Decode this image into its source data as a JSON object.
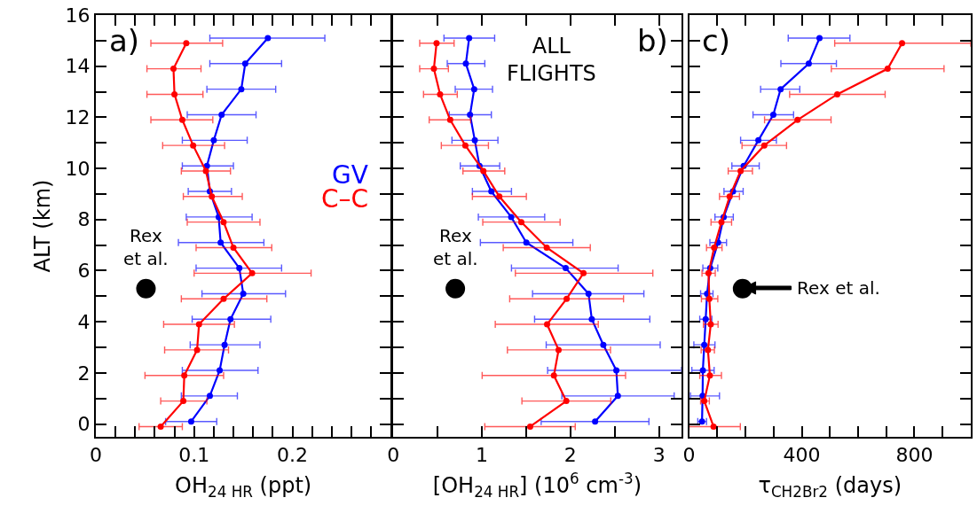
{
  "chart_data": [
    {
      "type": "line",
      "xlabel": "OH$_{24 HR}$ (ppt)",
      "ylabel": "ALT (km)",
      "xlim": [
        0,
        0.3
      ],
      "ylim": [
        -0.5,
        16
      ],
      "xticks": [
        0,
        {
          "value": 0.02,
          "label": null
        },
        {
          "value": 0.04,
          "label": null
        },
        {
          "value": 0.06,
          "label": null
        },
        {
          "value": 0.08,
          "label": null
        },
        0.1,
        {
          "value": 0.12,
          "label": null
        },
        {
          "value": 0.14,
          "label": null
        },
        {
          "value": 0.16,
          "label": null
        },
        {
          "value": 0.18,
          "label": null
        },
        0.2,
        {
          "value": 0.22,
          "label": null
        },
        {
          "value": 0.24,
          "label": null
        },
        {
          "value": 0.26,
          "label": null
        },
        {
          "value": 0.28,
          "label": null
        }
      ],
      "yticks": [
        0,
        {
          "value": 1,
          "label": null
        },
        2,
        {
          "value": 3,
          "label": null
        },
        4,
        {
          "value": 5,
          "label": null
        },
        6,
        {
          "value": 7,
          "label": null
        },
        8,
        {
          "value": 9,
          "label": null
        },
        10,
        {
          "value": 11,
          "label": null
        },
        12,
        {
          "value": 13,
          "label": null
        },
        14,
        {
          "value": 15,
          "label": null
        },
        16
      ],
      "marker": "circle",
      "legend": "right",
      "annotations": [
        "a)",
        {
          "text": "Rex\net al.",
          "x": 0.051,
          "y": 5.3
        }
      ],
      "series": [
        {
          "name": "GV",
          "color": "#0000ff",
          "x": [
            0.175,
            0.152,
            0.148,
            0.128,
            0.12,
            0.113,
            0.116,
            0.125,
            0.127,
            0.146,
            0.15,
            0.137,
            0.131,
            0.126,
            0.116,
            0.097
          ],
          "values": [
            15.1,
            14.1,
            13.1,
            12.1,
            11.1,
            10.1,
            9.1,
            8.1,
            7.1,
            6.1,
            5.1,
            4.1,
            3.1,
            2.1,
            1.1,
            0.1
          ],
          "xerrors": [
            [
              0.116,
              0.233
            ],
            [
              0.116,
              0.189
            ],
            [
              0.113,
              0.183
            ],
            [
              0.093,
              0.163
            ],
            [
              0.088,
              0.154
            ],
            [
              0.088,
              0.14
            ],
            [
              0.094,
              0.138
            ],
            [
              0.092,
              0.159
            ],
            [
              0.084,
              0.171
            ],
            [
              0.102,
              0.189
            ],
            [
              0.108,
              0.193
            ],
            [
              0.098,
              0.178
            ],
            [
              0.096,
              0.167
            ],
            [
              0.088,
              0.165
            ],
            [
              0.087,
              0.144
            ],
            [
              0.071,
              0.123
            ]
          ]
        },
        {
          "name": "C–C",
          "color": "#ff0000",
          "x": [
            0.092,
            0.079,
            0.08,
            0.088,
            0.099,
            0.112,
            0.118,
            0.13,
            0.14,
            0.159,
            0.13,
            0.105,
            0.103,
            0.09,
            0.089,
            0.066
          ],
          "values": [
            14.9,
            13.9,
            12.9,
            11.9,
            10.9,
            9.9,
            8.9,
            7.9,
            6.9,
            5.9,
            4.9,
            3.9,
            2.9,
            1.9,
            0.9,
            -0.1
          ],
          "xerrors": [
            [
              0.056,
              0.129
            ],
            [
              0.052,
              0.107
            ],
            [
              0.052,
              0.109
            ],
            [
              0.056,
              0.119
            ],
            [
              0.068,
              0.131
            ],
            [
              0.087,
              0.137
            ],
            [
              0.089,
              0.149
            ],
            [
              0.093,
              0.167
            ],
            [
              0.102,
              0.179
            ],
            [
              0.1,
              0.219
            ],
            [
              0.087,
              0.174
            ],
            [
              0.069,
              0.141
            ],
            [
              0.07,
              0.135
            ],
            [
              0.05,
              0.13
            ],
            [
              0.066,
              0.113
            ],
            [
              0.044,
              0.088
            ]
          ]
        },
        {
          "type": "scatter",
          "color": "#000000",
          "x": [
            0.051
          ],
          "values": [
            5.3
          ]
        }
      ]
    },
    {
      "type": "line",
      "xlabel": "[OH$_{24 HR}$] (10$^{6}$ cm$^{-3}$)",
      "xlim": [
        0,
        3.25
      ],
      "ylim": [
        -0.5,
        16
      ],
      "tick_labels": "x",
      "xticks": [
        0,
        {
          "value": 0.5,
          "label": null
        },
        1,
        {
          "value": 1.5,
          "label": null
        },
        2,
        {
          "value": 2.5,
          "label": null
        },
        3
      ],
      "yticks": [
        0,
        {
          "value": 1,
          "label": null
        },
        2,
        {
          "value": 3,
          "label": null
        },
        4,
        {
          "value": 5,
          "label": null
        },
        6,
        {
          "value": 7,
          "label": null
        },
        8,
        {
          "value": 9,
          "label": null
        },
        10,
        {
          "value": 11,
          "label": null
        },
        12,
        {
          "value": 13,
          "label": null
        },
        14,
        {
          "value": 15,
          "label": null
        },
        16
      ],
      "marker": "circle",
      "annotations": [
        "b)",
        "ALL\nFLIGHTS",
        {
          "text": "Rex\net al.",
          "x": 0.7,
          "y": 5.3
        }
      ],
      "series": [
        {
          "color": "#0000ff",
          "x": [
            0.856,
            0.819,
            0.913,
            0.866,
            0.92,
            0.973,
            1.107,
            1.331,
            1.502,
            1.946,
            2.204,
            2.241,
            2.371,
            2.518,
            2.535,
            2.278
          ],
          "values": [
            15.1,
            14.1,
            13.1,
            12.1,
            11.1,
            10.1,
            9.1,
            8.1,
            7.1,
            6.1,
            5.1,
            4.1,
            3.1,
            2.1,
            1.1,
            0.1
          ],
          "xerrors": [
            [
              0.572,
              1.144
            ],
            [
              0.609,
              1.033
            ],
            [
              0.699,
              1.12
            ],
            [
              0.632,
              1.107
            ],
            [
              0.662,
              1.181
            ],
            [
              0.756,
              1.201
            ],
            [
              0.893,
              1.334
            ],
            [
              0.96,
              1.709
            ],
            [
              0.983,
              2.027
            ],
            [
              1.334,
              2.538
            ],
            [
              1.572,
              2.829
            ],
            [
              1.595,
              2.896
            ],
            [
              1.726,
              3.013
            ],
            [
              1.742,
              3.25
            ],
            [
              1.903,
              3.171
            ],
            [
              1.669,
              2.886
            ]
          ]
        },
        {
          "color": "#ff0000",
          "x": [
            0.488,
            0.458,
            0.528,
            0.642,
            0.813,
            1.017,
            1.197,
            1.445,
            1.732,
            2.147,
            1.957,
            1.736,
            1.866,
            1.813,
            1.953,
            1.545
          ],
          "values": [
            14.9,
            13.9,
            12.9,
            11.9,
            10.9,
            9.9,
            8.9,
            7.9,
            6.9,
            5.9,
            4.9,
            3.9,
            2.9,
            1.9,
            0.9,
            -0.1
          ],
          "xerrors": [
            [
              0.298,
              0.686
            ],
            [
              0.298,
              0.622
            ],
            [
              0.341,
              0.722
            ],
            [
              0.405,
              0.873
            ],
            [
              0.542,
              1.074
            ],
            [
              0.786,
              1.258
            ],
            [
              0.893,
              1.502
            ],
            [
              1.01,
              1.883
            ],
            [
              1.241,
              2.224
            ],
            [
              1.378,
              2.93
            ],
            [
              1.314,
              2.599
            ],
            [
              1.151,
              2.314
            ],
            [
              1.288,
              2.452
            ],
            [
              1.003,
              2.622
            ],
            [
              1.452,
              2.455
            ],
            [
              1.033,
              2.054
            ]
          ]
        },
        {
          "type": "scatter",
          "color": "#000000",
          "x": [
            0.7
          ],
          "values": [
            5.3
          ]
        }
      ]
    },
    {
      "type": "line",
      "xlabel": "τ$_{CH2Br2}$ (days)",
      "xlim": [
        0,
        1000
      ],
      "ylim": [
        -0.5,
        16
      ],
      "tick_labels": "x",
      "xticks": [
        0,
        {
          "value": 100,
          "label": null
        },
        {
          "value": 200,
          "label": null
        },
        {
          "value": 300,
          "label": null
        },
        400,
        {
          "value": 500,
          "label": null
        },
        {
          "value": 600,
          "label": null
        },
        {
          "value": 700,
          "label": null
        },
        800,
        {
          "value": 900,
          "label": null
        }
      ],
      "yticks": [
        0,
        {
          "value": 1,
          "label": null
        },
        2,
        {
          "value": 3,
          "label": null
        },
        4,
        {
          "value": 5,
          "label": null
        },
        6,
        {
          "value": 7,
          "label": null
        },
        8,
        {
          "value": 9,
          "label": null
        },
        10,
        {
          "value": 11,
          "label": null
        },
        12,
        {
          "value": 13,
          "label": null
        },
        14,
        {
          "value": 15,
          "label": null
        },
        16
      ],
      "marker": "circle",
      "annotations": [
        "c)",
        "Rex et al."
      ],
      "series": [
        {
          "color": "#0000ff",
          "x": [
            463,
            425,
            325,
            299,
            246,
            194,
            156,
            123,
            103,
            75,
            64,
            59,
            54,
            49,
            48,
            46
          ],
          "values": [
            15.1,
            14.1,
            13.1,
            12.1,
            11.1,
            10.1,
            9.1,
            8.1,
            7.1,
            6.1,
            5.1,
            4.1,
            3.1,
            2.1,
            1.1,
            0.1
          ],
          "xerrors": [
            [
              352,
              571
            ],
            [
              326,
              523
            ],
            [
              254,
              393
            ],
            [
              227,
              371
            ],
            [
              183,
              310
            ],
            [
              152,
              249
            ],
            [
              124,
              192
            ],
            [
              92,
              157
            ],
            [
              74,
              133
            ],
            [
              49,
              102
            ],
            [
              41,
              85
            ],
            [
              38,
              81
            ],
            [
              17,
              92
            ],
            [
              10,
              89
            ],
            [
              5,
              108
            ],
            [
              31,
              62
            ]
          ]
        },
        {
          "color": "#ff0000",
          "x": [
            756,
            705,
            526,
            385,
            267,
            183,
            144,
            115,
            89,
            69,
            72,
            77,
            67,
            74,
            54,
            87
          ],
          "values": [
            14.9,
            13.9,
            12.9,
            11.9,
            10.9,
            9.9,
            8.9,
            7.9,
            6.9,
            5.9,
            4.9,
            3.9,
            2.9,
            1.9,
            0.9,
            -0.1
          ],
          "xerrors": [
            [
              517,
              1000
            ],
            [
              505,
              905
            ],
            [
              357,
              696
            ],
            [
              268,
              504
            ],
            [
              188,
              346
            ],
            [
              139,
              225
            ],
            [
              108,
              179
            ],
            [
              78,
              151
            ],
            [
              62,
              117
            ],
            [
              46,
              93
            ],
            [
              44,
              102
            ],
            [
              51,
              103
            ],
            [
              43,
              90
            ],
            [
              38,
              115
            ],
            [
              41,
              72
            ],
            [
              0,
              182
            ]
          ]
        },
        {
          "type": "scatter",
          "color": "#000000",
          "x": [
            190
          ],
          "values": [
            5.3
          ]
        }
      ]
    }
  ]
}
